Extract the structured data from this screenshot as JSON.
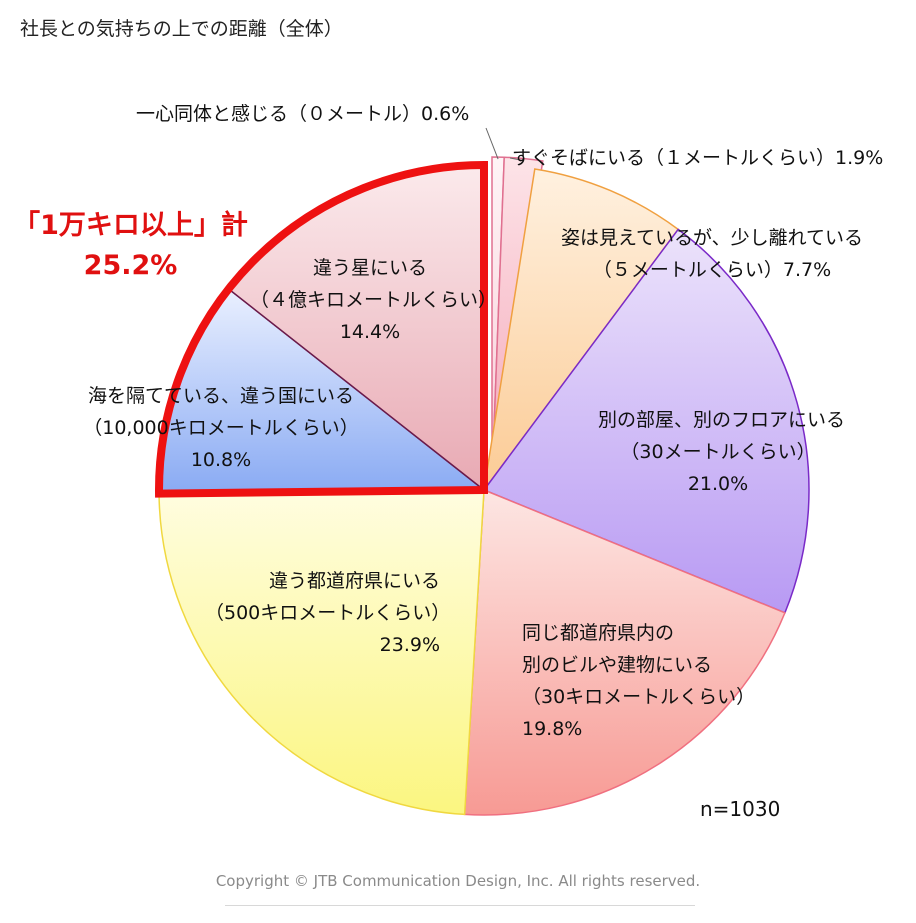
{
  "chart_data": {
    "type": "pie",
    "title": "社長との気持ちの上での距離（全体）",
    "sample_note": "n=1030",
    "slices": [
      {
        "lines": [
          "一心同体と感じる（０メートル）0.6%"
        ],
        "value": 0.6,
        "colors": [
          "#fff4f6",
          "#f7ccd6"
        ],
        "stroke": "#e07090"
      },
      {
        "lines": [
          "すぐそばにいる（１メートルくらい）1.9%"
        ],
        "value": 1.9,
        "colors": [
          "#fde4e8",
          "#f4a6b8"
        ],
        "stroke": "#e07090"
      },
      {
        "lines": [
          "姿は見えているが、少し離れている",
          "（５メートルくらい）7.7%"
        ],
        "value": 7.7,
        "colors": [
          "#fff1e0",
          "#fbcb95"
        ],
        "stroke": "#f0a040"
      },
      {
        "lines": [
          "別の部屋、別のフロアにいる",
          "（30メートルくらい）",
          "21.0%"
        ],
        "value": 21.0,
        "colors": [
          "#ece3fb",
          "#b89af3"
        ],
        "stroke": "#7a2ac8"
      },
      {
        "lines": [
          "同じ都道府県内の",
          "別のビルや建物にいる",
          "（30キロメートルくらい）",
          "19.8%"
        ],
        "value": 19.8,
        "colors": [
          "#fde6e3",
          "#f79a94"
        ],
        "stroke": "#f07080"
      },
      {
        "lines": [
          "違う都道府県にいる",
          "（500キロメートルくらい）",
          "23.9%"
        ],
        "value": 23.9,
        "colors": [
          "#fffde0",
          "#fbf680"
        ],
        "stroke": "#f0d840"
      },
      {
        "lines": [
          "海を隔てている、違う国にいる",
          "（10,000キロメートルくらい）",
          "10.8%"
        ],
        "value": 10.8,
        "colors": [
          "#eaf0ff",
          "#89aaf3"
        ],
        "stroke": "#6a1a4a"
      },
      {
        "lines": [
          "違う星にいる",
          "（４億キロメートルくらい）",
          "14.4%"
        ],
        "value": 14.4,
        "colors": [
          "#fbeaec",
          "#e8a9b3"
        ],
        "stroke": "#6a1a4a"
      }
    ],
    "highlight": {
      "lines": [
        "「1万キロ以上」計",
        "25.2%"
      ],
      "slice_indices": [
        6,
        7
      ],
      "color": "#ee1111"
    },
    "legend": "none"
  },
  "copyright": "Copyright © JTB Communication Design, Inc. All rights reserved."
}
